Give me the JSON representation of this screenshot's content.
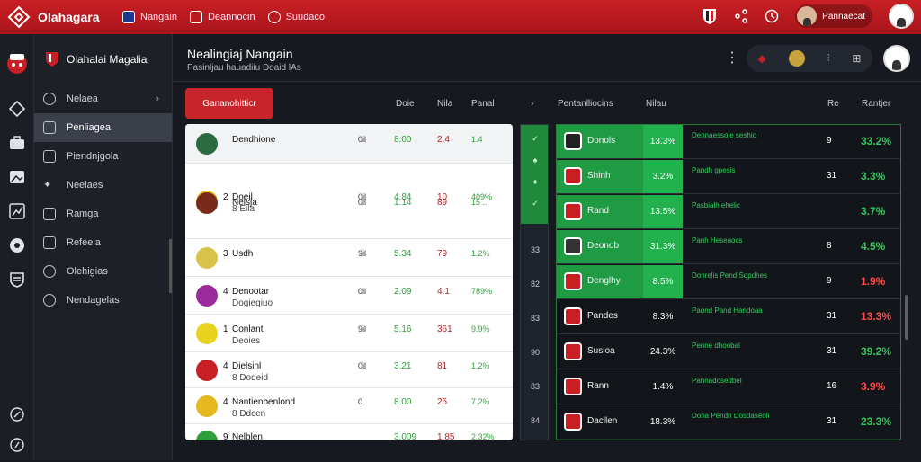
{
  "topbar": {
    "brand": "Olahagara",
    "items": [
      {
        "label": "Nangain",
        "icon": "shield-icon"
      },
      {
        "label": "Deannocin",
        "icon": "card-icon"
      },
      {
        "label": "Suudaco",
        "icon": "ball-icon"
      }
    ],
    "user_label": "Pannaecat",
    "colors": {
      "accent": "#c81f24",
      "green": "#1f9b44",
      "bg": "#16191f"
    }
  },
  "sidebar": {
    "title": "Olahalai Magalia",
    "items": [
      {
        "label": "Nelaea"
      },
      {
        "label": "Penliagea"
      },
      {
        "label": "Piendnjgola"
      },
      {
        "label": "Neelaes"
      },
      {
        "label": "Ramga"
      },
      {
        "label": "Refeela"
      },
      {
        "label": "Olehigias"
      },
      {
        "label": "Nendagelas"
      }
    ]
  },
  "page": {
    "title": "Nealingiaj Nangain",
    "subtitle": "Pasinljau hauadiiu Doaid lAs"
  },
  "left_table": {
    "tab_label": "Gananohitticr",
    "headers": [
      "Doie",
      "Nila",
      "Panal"
    ],
    "rows": [
      {
        "rank": "",
        "name": "Dendhione",
        "name2": "",
        "c1": "0il",
        "c2": "8.00",
        "c3": "2.4",
        "c4": "1.4"
      },
      {
        "rank": "2",
        "name": "Doeil",
        "name2": "8  Eila",
        "c1": "0il",
        "c2": "4.84",
        "c3": "10",
        "c4": "409%"
      },
      {
        "rank": "",
        "name": "Nelsja",
        "name2": "",
        "c1": "0il",
        "c2": "1.14",
        "c3": "89",
        "c4": "15 .."
      },
      {
        "rank": "3",
        "name": "Usdh",
        "name2": "",
        "c1": "9il",
        "c2": "5.34",
        "c3": "79",
        "c4": "1.2%"
      },
      {
        "rank": "4",
        "name": "Denootar",
        "name2": "Dogiegiuo",
        "c1": "0il",
        "c2": "2.09",
        "c3": "4.1",
        "c4": "789%"
      },
      {
        "rank": "1",
        "name": "Conlant",
        "name2": "Deoies",
        "c1": "9il",
        "c2": "5.16",
        "c3": "361",
        "c4": "9.9%"
      },
      {
        "rank": "4",
        "name": "Dielsinl",
        "name2": "8  Dodeid",
        "c1": "0il",
        "c2": "3.21",
        "c3": "81",
        "c4": "1.2%"
      },
      {
        "rank": "4",
        "name": "Nantienbenlond",
        "name2": "8  Ddcen",
        "c1": "0",
        "c2": "8.00",
        "c3": "25",
        "c4": "7.2%"
      },
      {
        "rank": "9",
        "name": "Nelblen",
        "name2": "",
        "c1": "",
        "c2": "3.009",
        "c3": "1.85",
        "c4": "2.32%"
      }
    ]
  },
  "right_table": {
    "headers": [
      "Pentanlliocins",
      "Nilau",
      "Re",
      "Rantjer"
    ],
    "rows": [
      {
        "team": "Donols",
        "pct1": "13.3%",
        "desc": "Dennaessoje seshio",
        "rank": "9",
        "pct": "33.2%",
        "hl": true,
        "color": "#35c35c"
      },
      {
        "team": "Shinh",
        "pct1": "3.2%",
        "desc": "Pandh gpesis",
        "rank": "31",
        "pct": "3.3%",
        "hl": true,
        "color": "#35c35c"
      },
      {
        "team": "Rand",
        "pct1": "13.5%",
        "desc": "Pasbialh ehelic",
        "rank": "",
        "pct": "3.7%",
        "hl": true,
        "color": "#35c35c"
      },
      {
        "team": "Deonob",
        "pct1": "31.3%",
        "desc": "Panh Heseaocs",
        "rank": "8",
        "pct": "4.5%",
        "hl": true,
        "color": "#35c35c"
      },
      {
        "team": "Denglhy",
        "pct1": "8.5%",
        "desc": "Donrelis Pend Sopdhes",
        "rank": "9",
        "pct": "1.9%",
        "hl": true,
        "color": "#ff4a4a"
      },
      {
        "team": "Pandes",
        "pct1": "8.3%",
        "desc": "Paond Pand Handoaa",
        "rank": "31",
        "pct": "13.3%",
        "hl": false,
        "color": "#ff4a4a"
      },
      {
        "team": "Susloa",
        "pct1": "24.3%",
        "desc": "Penne dhoobal",
        "rank": "31",
        "pct": "39.2%",
        "hl": false,
        "color": "#35c35c"
      },
      {
        "team": "Rann",
        "pct1": "1.4%",
        "desc": "Pannadosedbel",
        "rank": "16",
        "pct": "3.9%",
        "hl": false,
        "color": "#ff4a4a"
      },
      {
        "team": "Dacllen",
        "pct1": "18.3%",
        "desc": "Dona Pendn Dosdaseoli",
        "rank": "31",
        "pct": "23.3%",
        "hl": false,
        "color": "#35c35c"
      }
    ]
  },
  "strip": [
    "33",
    "82",
    "83",
    "90",
    "83",
    "84"
  ]
}
